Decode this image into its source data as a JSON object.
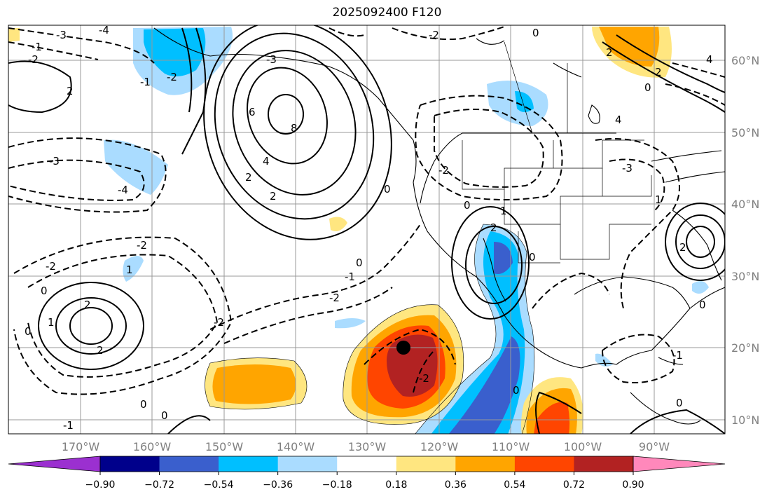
{
  "title": "2025092400 F120",
  "map": {
    "lon_labels": [
      "170°W",
      "160°W",
      "150°W",
      "140°W",
      "130°W",
      "120°W",
      "110°W",
      "100°W",
      "90°W"
    ],
    "lat_labels": [
      "60°N",
      "50°N",
      "40°N",
      "30°N",
      "20°N",
      "10°N"
    ],
    "contour_labels": [
      "-3",
      "-4",
      "-2",
      "-1",
      "0",
      "1",
      "2",
      "4",
      "6",
      "8",
      "-2",
      "-1",
      "0",
      "1",
      "2",
      "-1",
      "0",
      "-2",
      "-1",
      "1",
      "-3",
      "-4",
      "2",
      "4",
      "-1"
    ],
    "marker": "storm-center"
  },
  "colorbar": {
    "ticks": [
      "−0.90",
      "−0.72",
      "−0.54",
      "−0.36",
      "−0.18",
      "0.18",
      "0.36",
      "0.54",
      "0.72",
      "0.90"
    ],
    "colors": [
      "#9b30d0",
      "#00008b",
      "#3a5fcd",
      "#00bfff",
      "#aadcff",
      "#ffffff",
      "#ffe680",
      "#ffa500",
      "#ff4500",
      "#b22222",
      "#ff88bb"
    ]
  },
  "fill_colors": {
    "neg_1": "#aadcff",
    "neg_2": "#00bfff",
    "neg_3": "#3a5fcd",
    "pos_1": "#ffe680",
    "pos_2": "#ffa500",
    "pos_3": "#ff4500",
    "pos_4": "#b22222"
  }
}
